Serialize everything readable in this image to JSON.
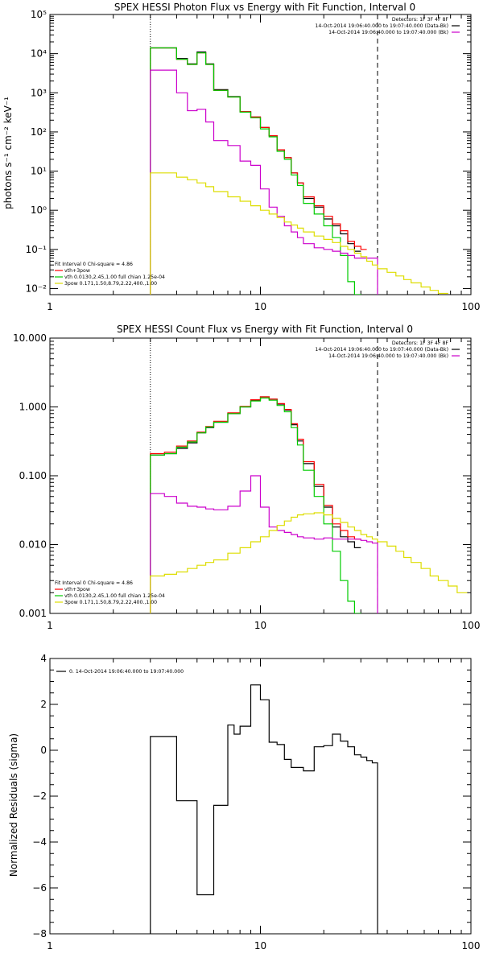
{
  "chart_data": [
    {
      "type": "line",
      "title": "SPEX HESSI Photon Flux vs Energy with Fit Function, Interval 0",
      "ylabel": "photons s⁻¹ cm⁻² keV⁻¹",
      "xlabel": "",
      "xscale": "log",
      "yscale": "log",
      "xlim": [
        1,
        100
      ],
      "ylim": [
        0.007,
        100000
      ],
      "xticks": [
        1,
        10,
        100
      ],
      "xticklabels": [
        "1",
        "10",
        "100"
      ],
      "yticks": [
        0.01,
        0.1,
        1,
        10,
        100,
        1000,
        10000,
        100000
      ],
      "yticklabels": [
        "10⁻²",
        "10⁻¹",
        "10⁰",
        "10¹",
        "10²",
        "10³",
        "10⁴",
        "10⁵"
      ],
      "vlines": [
        {
          "x": 3,
          "style": "dotted"
        },
        {
          "x": 36,
          "style": "dashed"
        }
      ],
      "legend_top_right": [
        {
          "text": "Detectors: 1F 3F 4F 8F",
          "color": "#000000"
        },
        {
          "text": "14-Oct-2014 19:06:40.000 to 19:07:40.000 (Data-Bk)",
          "color": "#000000"
        },
        {
          "text": "14-Oct-2014 19:06:40.000 to 19:07:40.000 (Bk)",
          "color": "#cc00cc"
        }
      ],
      "legend_bottom_left": [
        {
          "text": "Fit Interval 0   Chi-square = 4.86",
          "color": "#000000"
        },
        {
          "text": "vth+3pow",
          "color": "#ff0000"
        },
        {
          "text": "vth 0.0130,2.45,1.00  full chian 1.25e-04",
          "color": "#00cc00"
        },
        {
          "text": "3pow 0.171,1.50,8.79,2.22,400.,1.00",
          "color": "#dddd00"
        }
      ],
      "edges": [
        3.0,
        3.5,
        4.0,
        4.5,
        5.0,
        5.5,
        6.0,
        7.0,
        8.0,
        9.0,
        10.0,
        11.0,
        12.0,
        13.0,
        14.0,
        15.0,
        16.0,
        18.0,
        20.0,
        22.0,
        24.0,
        26.0,
        28.0,
        30.0,
        32.0,
        34.0,
        36.0,
        40.0,
        44.0,
        48.0,
        52.0,
        58.0,
        64.0,
        70.0,
        78.0,
        86.0,
        96.0
      ],
      "series": [
        {
          "color": "#000000",
          "values": [
            14000,
            14000,
            7500,
            5500,
            11000,
            5500,
            1200,
            800,
            330,
            240,
            130,
            80,
            35,
            22,
            9,
            5,
            2.0,
            1.2,
            0.6,
            0.4,
            0.25,
            0.14,
            0.09
          ]
        },
        {
          "color": "#ff0000",
          "values": [
            14000,
            14000,
            7200,
            5300,
            10500,
            5300,
            1150,
            780,
            330,
            240,
            130,
            80,
            35,
            22,
            9,
            5,
            2.2,
            1.3,
            0.7,
            0.45,
            0.3,
            0.16,
            0.12,
            0.1
          ]
        },
        {
          "color": "#00cc00",
          "values": [
            14000,
            14000,
            7200,
            5300,
            10500,
            5300,
            1150,
            780,
            320,
            230,
            120,
            75,
            32,
            20,
            8,
            4.3,
            1.5,
            0.8,
            0.4,
            0.2,
            0.07,
            0.015,
            0.006
          ]
        },
        {
          "color": "#cc00cc",
          "values": [
            3800,
            3800,
            1000,
            350,
            380,
            180,
            60,
            45,
            18,
            14,
            3.5,
            1.2,
            0.7,
            0.4,
            0.28,
            0.2,
            0.14,
            0.11,
            0.1,
            0.09,
            0.08,
            0.07,
            0.06,
            0.06,
            0.06,
            0.06
          ]
        },
        {
          "color": "#dddd00",
          "values": [
            9,
            9,
            7,
            6,
            5,
            4,
            3,
            2.2,
            1.7,
            1.3,
            1.0,
            0.8,
            0.65,
            0.5,
            0.42,
            0.35,
            0.28,
            0.22,
            0.18,
            0.15,
            0.12,
            0.1,
            0.08,
            0.065,
            0.05,
            0.04,
            0.032,
            0.026,
            0.021,
            0.017,
            0.014,
            0.011,
            0.009,
            0.0075
          ]
        }
      ]
    },
    {
      "type": "line",
      "title": "SPEX HESSI Count Flux vs Energy with Fit Function, Interval 0",
      "ylabel": "",
      "xlabel": "",
      "xscale": "log",
      "yscale": "log",
      "xlim": [
        1,
        100
      ],
      "ylim": [
        0.001,
        10
      ],
      "xticks": [
        1,
        10,
        100
      ],
      "xticklabels": [
        "1",
        "10",
        "100"
      ],
      "yticks": [
        0.001,
        0.01,
        0.1,
        1,
        10
      ],
      "yticklabels": [
        "0.001",
        "0.010",
        "0.100",
        "1.000",
        "10.000"
      ],
      "vlines": [
        {
          "x": 3,
          "style": "dotted"
        },
        {
          "x": 36,
          "style": "dashed"
        }
      ],
      "legend_top_right": [
        {
          "text": "Detectors: 1F 3F 4F 8F",
          "color": "#000000"
        },
        {
          "text": "14-Oct-2014 19:06:40.000 to 19:07:40.000 (Data-Bk)",
          "color": "#000000"
        },
        {
          "text": "14-Oct-2014 19:06:40.000 to 19:07:40.000 (Bk)",
          "color": "#cc00cc"
        }
      ],
      "legend_bottom_left": [
        {
          "text": "Fit Interval 0   Chi-square = 4.86",
          "color": "#000000"
        },
        {
          "text": "vth+3pow",
          "color": "#ff0000"
        },
        {
          "text": "vth 0.0130,2.45,1.00  full chian 1.25e-04",
          "color": "#00cc00"
        },
        {
          "text": "3pow 0.171,1.50,8.79,2.22,400.,1.00",
          "color": "#dddd00"
        }
      ],
      "edges": [
        3.0,
        3.5,
        4.0,
        4.5,
        5.0,
        5.5,
        6.0,
        7.0,
        8.0,
        9.0,
        10.0,
        11.0,
        12.0,
        13.0,
        14.0,
        15.0,
        16.0,
        18.0,
        20.0,
        22.0,
        24.0,
        26.0,
        28.0,
        30.0,
        32.0,
        34.0,
        36.0,
        40.0,
        44.0,
        48.0,
        52.0,
        58.0,
        64.0,
        70.0,
        78.0,
        86.0,
        96.0
      ],
      "series": [
        {
          "color": "#000000",
          "values": [
            0.2,
            0.21,
            0.25,
            0.3,
            0.42,
            0.5,
            0.6,
            0.8,
            1.0,
            1.25,
            1.4,
            1.3,
            1.1,
            0.9,
            0.55,
            0.32,
            0.15,
            0.07,
            0.035,
            0.018,
            0.013,
            0.011,
            0.009
          ]
        },
        {
          "color": "#ff0000",
          "values": [
            0.21,
            0.22,
            0.27,
            0.32,
            0.43,
            0.52,
            0.62,
            0.82,
            1.02,
            1.27,
            1.4,
            1.3,
            1.12,
            0.92,
            0.57,
            0.34,
            0.16,
            0.075,
            0.037,
            0.02,
            0.016,
            0.013,
            0.012
          ]
        },
        {
          "color": "#00cc00",
          "values": [
            0.2,
            0.21,
            0.26,
            0.31,
            0.42,
            0.51,
            0.6,
            0.8,
            1.0,
            1.22,
            1.35,
            1.25,
            1.05,
            0.85,
            0.5,
            0.28,
            0.12,
            0.05,
            0.02,
            0.008,
            0.003,
            0.0015,
            0.0008
          ]
        },
        {
          "color": "#cc00cc",
          "values": [
            0.055,
            0.05,
            0.04,
            0.036,
            0.035,
            0.033,
            0.032,
            0.036,
            0.06,
            0.1,
            0.035,
            0.018,
            0.016,
            0.015,
            0.014,
            0.013,
            0.0125,
            0.012,
            0.0125,
            0.012,
            0.012,
            0.012,
            0.012,
            0.0115,
            0.011,
            0.0105
          ]
        },
        {
          "color": "#dddd00",
          "values": [
            0.0035,
            0.0037,
            0.004,
            0.0045,
            0.005,
            0.0055,
            0.006,
            0.0075,
            0.009,
            0.011,
            0.013,
            0.016,
            0.019,
            0.022,
            0.025,
            0.027,
            0.028,
            0.029,
            0.027,
            0.024,
            0.021,
            0.018,
            0.016,
            0.014,
            0.013,
            0.012,
            0.011,
            0.0095,
            0.008,
            0.0065,
            0.0055,
            0.0045,
            0.0035,
            0.003,
            0.0025,
            0.002
          ]
        }
      ]
    },
    {
      "type": "line",
      "title": "",
      "ylabel": "Normalized Residuals (sigma)",
      "xlabel": "",
      "xscale": "log",
      "yscale": "linear",
      "xlim": [
        1,
        100
      ],
      "ylim": [
        -8,
        4
      ],
      "xticks": [
        1,
        10,
        100
      ],
      "xticklabels": [
        "1",
        "10",
        "100"
      ],
      "yticks": [
        -8,
        -6,
        -4,
        -2,
        0,
        2,
        4
      ],
      "yticklabels": [
        "−8",
        "−6",
        "−4",
        "−2",
        "0",
        "2",
        "4"
      ],
      "legend_top_left": [
        {
          "text": "0. 14-Oct-2014 19:06:40.000 to 19:07:40.000",
          "color": "#000000"
        }
      ],
      "edges": [
        3.0,
        4.0,
        5.0,
        6.0,
        7.0,
        7.5,
        8.0,
        9.0,
        10.0,
        11.0,
        12.0,
        13.0,
        14.0,
        16.0,
        18.0,
        20.0,
        22.0,
        24.0,
        26.0,
        28.0,
        30.0,
        32.0,
        34.0,
        36.0
      ],
      "series": [
        {
          "color": "#000000",
          "values": [
            0.6,
            -2.2,
            -6.3,
            -2.4,
            1.1,
            0.7,
            1.05,
            2.85,
            2.2,
            0.35,
            0.25,
            -0.4,
            -0.75,
            -0.9,
            0.15,
            0.2,
            0.7,
            0.4,
            0.15,
            -0.2,
            -0.3,
            -0.45,
            -0.55
          ]
        }
      ]
    }
  ]
}
